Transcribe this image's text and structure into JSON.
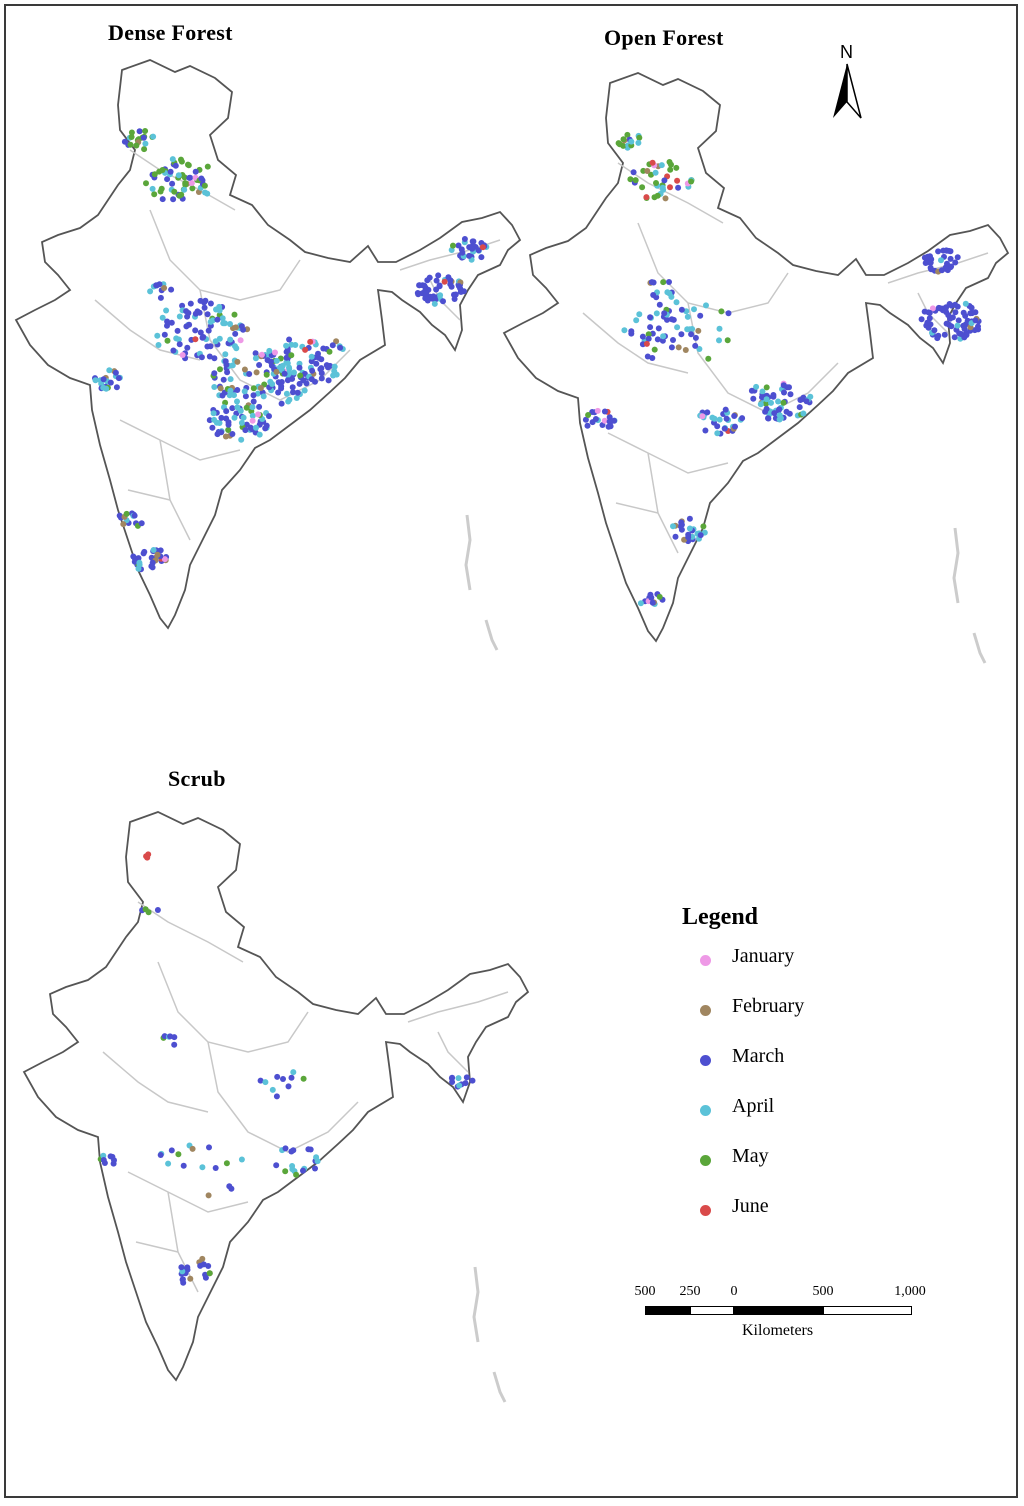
{
  "panels": {
    "dense": {
      "title": "Dense Forest"
    },
    "open": {
      "title": "Open Forest"
    },
    "scrub": {
      "title": "Scrub"
    }
  },
  "north_arrow": {
    "letter": "N"
  },
  "legend": {
    "title": "Legend",
    "items": [
      {
        "label": "January",
        "color": "#ee99e6"
      },
      {
        "label": "February",
        "color": "#a08660"
      },
      {
        "label": "March",
        "color": "#4d4fd0"
      },
      {
        "label": "April",
        "color": "#5bc2d8"
      },
      {
        "label": "May",
        "color": "#5aa63a"
      },
      {
        "label": "June",
        "color": "#d94a4a"
      }
    ]
  },
  "scale_bar": {
    "ticks": [
      "500",
      "250",
      "0",
      "500",
      "1,000"
    ],
    "unit": "Kilometers"
  },
  "colors": {
    "outline": "#555555",
    "state_boundary": "#c8c8c8",
    "islands": "#cccccc"
  }
}
